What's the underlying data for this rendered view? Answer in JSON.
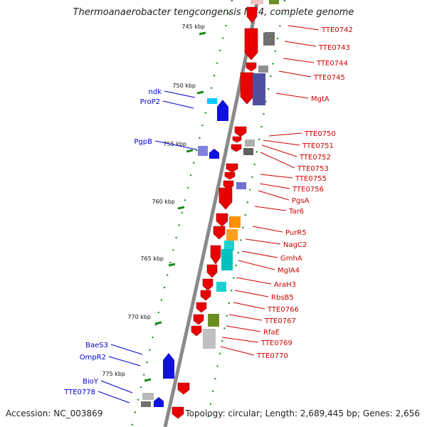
{
  "title": "Thermoanaerobacter tengcongensis MB4, complete genome",
  "footer": {
    "accession": "Accession: NC_003869",
    "summary": "Topology: circular; Length: 2,689,445 bp; Genes: 2,656"
  },
  "colors": {
    "backbone": "#8a8a8a",
    "tick": "#1a8a1a",
    "right_label": "#d10000",
    "left_label": "#0000cc",
    "forward_gene": "#e80000",
    "reverse_gene": "#1010e0"
  },
  "scale_labels": [
    "745 kbp",
    "750 kbp",
    "755 kbp",
    "760 kbp",
    "765 kbp",
    "770 kbp",
    "775 kbp"
  ],
  "right_gene_labels": [
    "TTE0742",
    "TTE0743",
    "TTE0744",
    "TTE0745",
    "MgtA",
    "TTE0750",
    "TTE0751",
    "TTE0752",
    "TTE0753",
    "TTE0755",
    "TTE0756",
    "PgsA",
    "Tar6",
    "PurR5",
    "NagC2",
    "GmhA",
    "MglA4",
    "AraH3",
    "RbsB5",
    "TTE0766",
    "TTE0767",
    "RfaE",
    "TTE0769",
    "TTE0770"
  ],
  "left_gene_labels": [
    "ndk",
    "ProP2",
    "PgpB",
    "BaeS3",
    "OmpR2",
    "BioY",
    "TTE0778"
  ]
}
